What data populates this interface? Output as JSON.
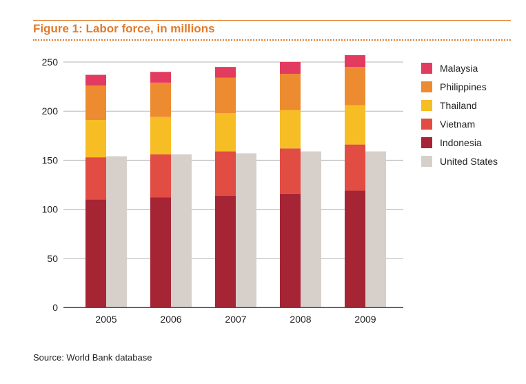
{
  "figure": {
    "title": "Figure 1: Labor force, in millions",
    "source": "Source: World Bank database"
  },
  "colors": {
    "accent": "#e07b2c",
    "grid": "#b5b5b5",
    "axis": "#333333"
  },
  "chart_data": {
    "type": "bar",
    "title": "Figure 1: Labor force, in millions",
    "xlabel": "",
    "ylabel": "",
    "categories": [
      "2005",
      "2006",
      "2007",
      "2008",
      "2009"
    ],
    "ylim": [
      0,
      250
    ],
    "yticks": [
      0,
      50,
      100,
      150,
      200,
      250
    ],
    "grid": true,
    "legend_position": "right",
    "stacks": [
      {
        "stack": "left",
        "series": [
          {
            "name": "Indonesia",
            "color": "#a52535",
            "values": [
              110,
              112,
              114,
              116,
              119
            ]
          },
          {
            "name": "Vietnam",
            "color": "#e14c43",
            "values": [
              43,
              44,
              45,
              46,
              47
            ]
          },
          {
            "name": "Thailand",
            "color": "#f6bd25",
            "values": [
              38,
              38,
              39,
              39,
              40
            ]
          },
          {
            "name": "Philippines",
            "color": "#ec8b30",
            "values": [
              35,
              35,
              36,
              37,
              39
            ]
          },
          {
            "name": "Malaysia",
            "color": "#e33b60",
            "values": [
              11,
              11,
              11,
              12,
              12
            ]
          }
        ]
      },
      {
        "stack": "right",
        "series": [
          {
            "name": "United States",
            "color": "#d7cfca",
            "values": [
              154,
              156,
              157,
              159,
              159
            ]
          }
        ]
      }
    ],
    "legend": [
      {
        "name": "Malaysia",
        "color": "#e33b60"
      },
      {
        "name": "Philippines",
        "color": "#ec8b30"
      },
      {
        "name": "Thailand",
        "color": "#f6bd25"
      },
      {
        "name": "Vietnam",
        "color": "#e14c43"
      },
      {
        "name": "Indonesia",
        "color": "#a52535"
      },
      {
        "name": "United States",
        "color": "#d7cfca"
      }
    ]
  }
}
